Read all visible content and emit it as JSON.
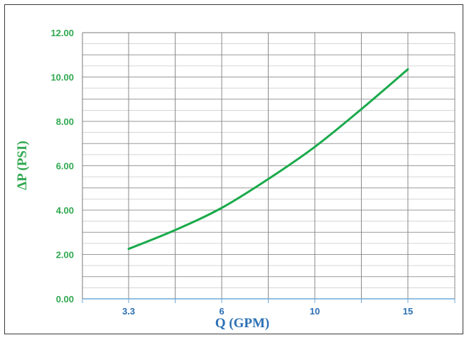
{
  "chart_data": {
    "type": "line",
    "xlabel": "Q (GPM)",
    "ylabel": "ΔP (PSI)",
    "x_tick_labels": [
      "3.3",
      "",
      "6",
      "",
      "10",
      "",
      "15"
    ],
    "y_tick_labels": [
      "0.00",
      "2.00",
      "4.00",
      "6.00",
      "8.00",
      "10.00",
      "12.00"
    ],
    "ylim": [
      0,
      12
    ],
    "grid": true,
    "colors": {
      "line": "#1aaa4b",
      "y_text": "#2fa84f",
      "x_text": "#2a6fb5",
      "grid": "#9a9a9a",
      "axis": "#6fa8d8"
    },
    "series": [
      {
        "x": [
          "3.3",
          "",
          "6",
          "",
          "10",
          "",
          "15"
        ],
        "values": [
          2.25,
          3.1,
          4.1,
          5.4,
          6.85,
          8.55,
          10.35
        ]
      }
    ]
  }
}
